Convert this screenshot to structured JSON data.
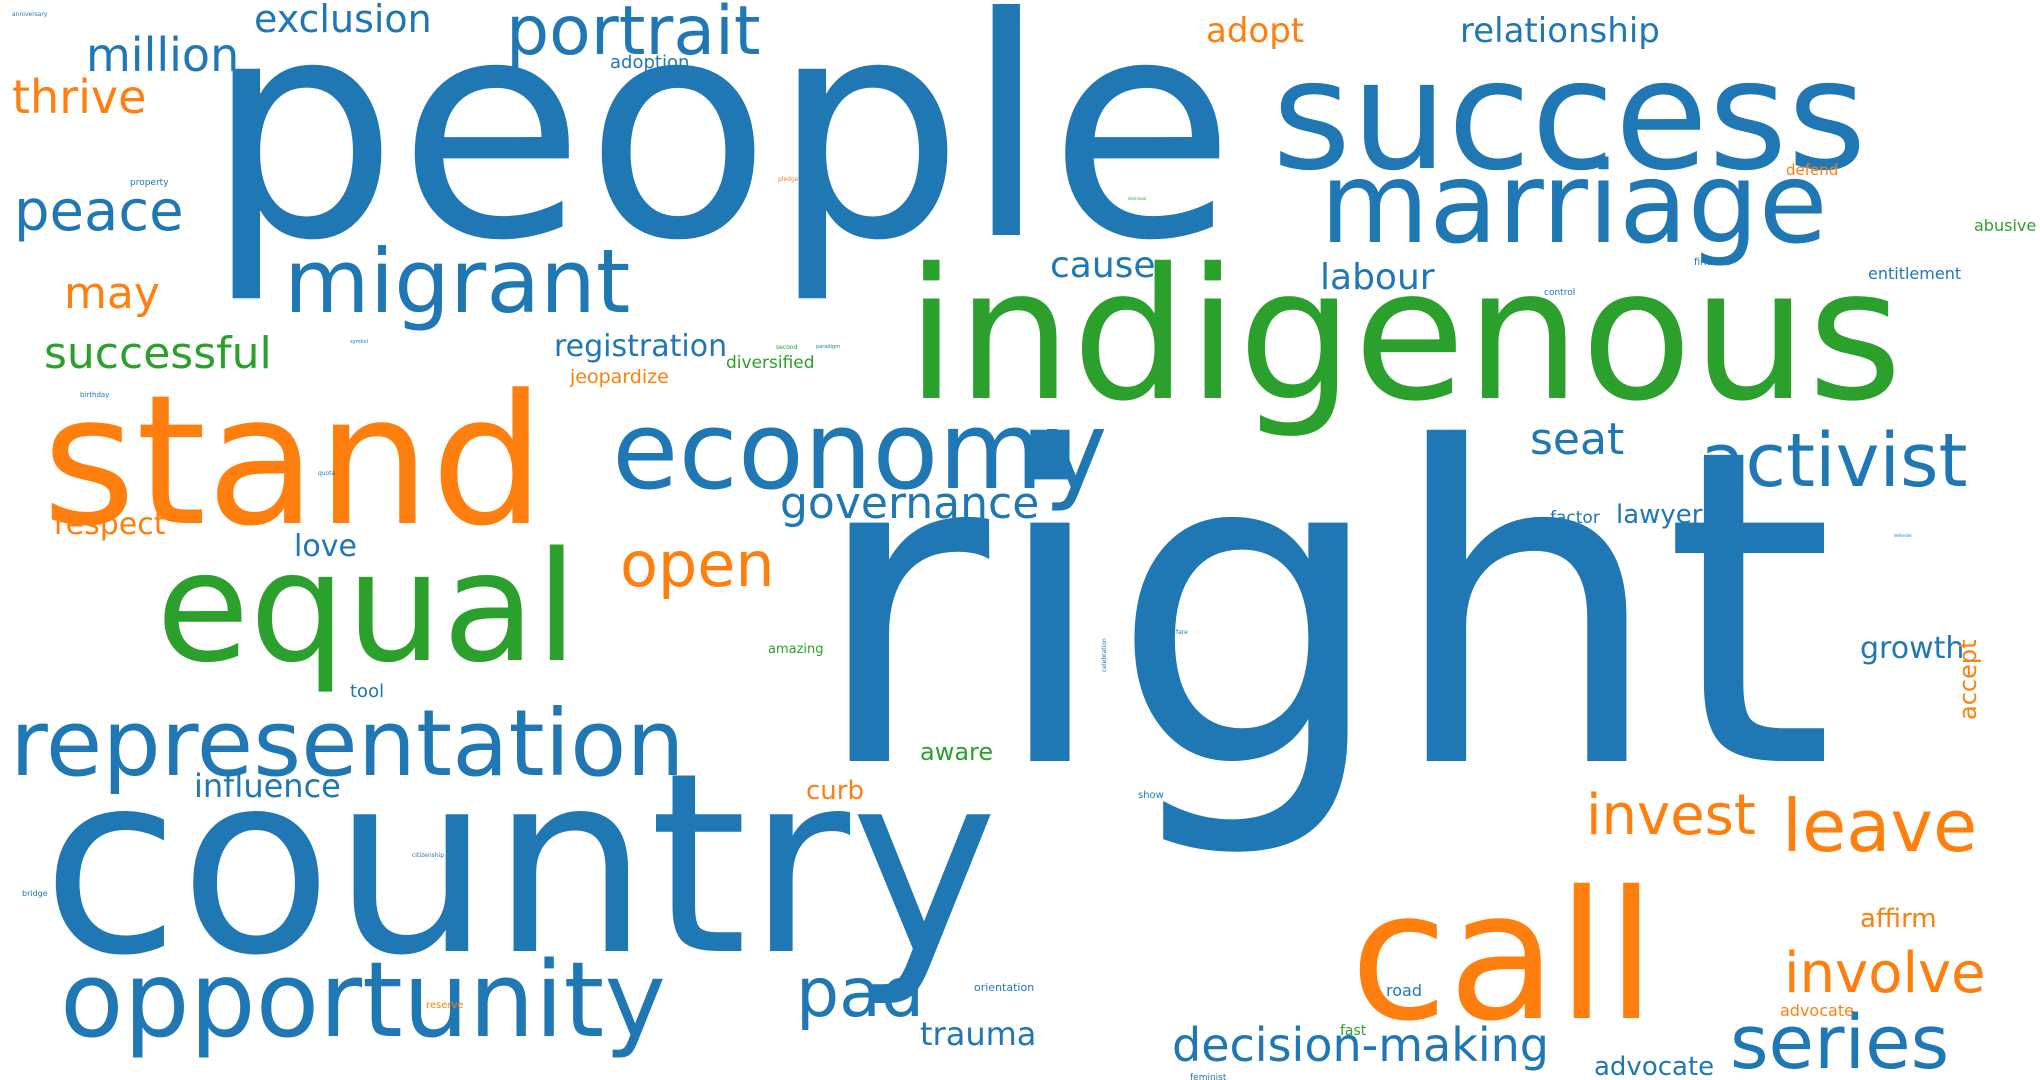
{
  "colors": {
    "blue": "#1f77b4",
    "orange": "#ff7f0e",
    "green": "#2ca02c"
  },
  "words": [
    {
      "text": "right",
      "color": "blue"
    },
    {
      "text": "people",
      "color": "blue"
    },
    {
      "text": "country",
      "color": "blue"
    },
    {
      "text": "indigenous",
      "color": "green"
    },
    {
      "text": "success",
      "color": "blue"
    },
    {
      "text": "marriage",
      "color": "blue"
    },
    {
      "text": "stand",
      "color": "orange"
    },
    {
      "text": "call",
      "color": "orange"
    },
    {
      "text": "equal",
      "color": "green"
    },
    {
      "text": "economy",
      "color": "blue"
    },
    {
      "text": "opportunity",
      "color": "blue"
    },
    {
      "text": "representation",
      "color": "blue"
    },
    {
      "text": "migrant",
      "color": "blue"
    },
    {
      "text": "activist",
      "color": "blue"
    },
    {
      "text": "series",
      "color": "blue"
    },
    {
      "text": "leave",
      "color": "orange"
    },
    {
      "text": "portrait",
      "color": "blue"
    },
    {
      "text": "pad",
      "color": "blue"
    },
    {
      "text": "open",
      "color": "orange"
    },
    {
      "text": "involve",
      "color": "orange"
    },
    {
      "text": "peace",
      "color": "blue"
    },
    {
      "text": "invest",
      "color": "orange"
    },
    {
      "text": "decision-making",
      "color": "blue"
    },
    {
      "text": "million",
      "color": "blue"
    },
    {
      "text": "thrive",
      "color": "orange"
    },
    {
      "text": "successful",
      "color": "green"
    },
    {
      "text": "governance",
      "color": "blue"
    },
    {
      "text": "seat",
      "color": "blue"
    },
    {
      "text": "exclusion",
      "color": "blue"
    },
    {
      "text": "may",
      "color": "orange"
    },
    {
      "text": "relationship",
      "color": "blue"
    },
    {
      "text": "adopt",
      "color": "orange"
    },
    {
      "text": "cause",
      "color": "blue"
    },
    {
      "text": "labour",
      "color": "blue"
    },
    {
      "text": "influence",
      "color": "blue"
    },
    {
      "text": "trauma",
      "color": "blue"
    },
    {
      "text": "registration",
      "color": "blue"
    },
    {
      "text": "respect",
      "color": "orange"
    },
    {
      "text": "love",
      "color": "blue"
    },
    {
      "text": "growth",
      "color": "blue"
    },
    {
      "text": "advocate",
      "color": "blue"
    },
    {
      "text": "lawyer",
      "color": "blue"
    },
    {
      "text": "affirm",
      "color": "orange"
    },
    {
      "text": "curb",
      "color": "orange"
    },
    {
      "text": "aware",
      "color": "green"
    },
    {
      "text": "accept",
      "color": "orange"
    },
    {
      "text": "jeopardize",
      "color": "orange"
    },
    {
      "text": "diversified",
      "color": "green"
    },
    {
      "text": "tool",
      "color": "blue"
    },
    {
      "text": "adoption",
      "color": "blue"
    },
    {
      "text": "factor",
      "color": "blue"
    },
    {
      "text": "abusive",
      "color": "green"
    },
    {
      "text": "entitlement",
      "color": "blue"
    },
    {
      "text": "defend",
      "color": "orange"
    },
    {
      "text": "amazing",
      "color": "green"
    },
    {
      "text": "road",
      "color": "blue"
    },
    {
      "text": "advocate",
      "color": "orange"
    },
    {
      "text": "fast",
      "color": "green"
    },
    {
      "text": "orientation",
      "color": "blue"
    },
    {
      "text": "reserve",
      "color": "orange"
    },
    {
      "text": "feminist",
      "color": "blue"
    },
    {
      "text": "show",
      "color": "blue"
    },
    {
      "text": "finance",
      "color": "blue"
    },
    {
      "text": "control",
      "color": "blue"
    },
    {
      "text": "property",
      "color": "blue"
    },
    {
      "text": "pledge",
      "color": "orange"
    },
    {
      "text": "birthday",
      "color": "blue"
    },
    {
      "text": "citizenship",
      "color": "blue"
    },
    {
      "text": "bridge",
      "color": "blue"
    },
    {
      "text": "quota",
      "color": "blue"
    },
    {
      "text": "celebration",
      "color": "blue"
    },
    {
      "text": "fare",
      "color": "blue"
    },
    {
      "text": "anniversary",
      "color": "blue"
    },
    {
      "text": "symbol",
      "color": "blue"
    },
    {
      "text": "second",
      "color": "green"
    },
    {
      "text": "paradigm",
      "color": "blue"
    },
    {
      "text": "dismissal",
      "color": "green"
    },
    {
      "text": "defender",
      "color": "blue"
    }
  ]
}
